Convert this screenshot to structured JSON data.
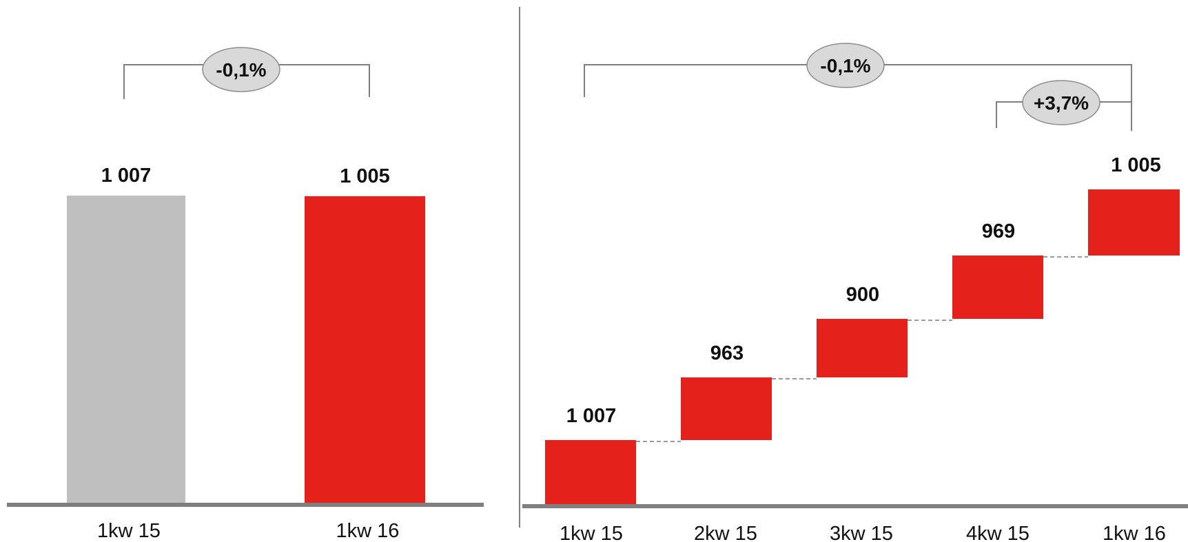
{
  "colors": {
    "highlight": "#e4211b",
    "previous": "#bfbfbf",
    "axis": "#7f7f7f",
    "bracket": "#7f7f7f",
    "badge_fill": "#d9d9d9",
    "badge_stroke": "#8c8c8c",
    "connector": "#8c8c8c"
  },
  "chart_data": [
    {
      "type": "bar",
      "categories": [
        "1kw 15",
        "1kw 16"
      ],
      "values": [
        1007,
        1005
      ],
      "value_labels": [
        "1 007",
        "1 005"
      ],
      "bar_colors": [
        "#bfbfbf",
        "#e4211b"
      ],
      "ylim": [
        0,
        1007
      ],
      "comparisons": [
        {
          "from": "1kw 15",
          "to": "1kw 16",
          "label": "-0,1%"
        }
      ]
    },
    {
      "type": "bar",
      "categories": [
        "1kw 15",
        "2kw 15",
        "3kw 15",
        "4kw 15",
        "1kw 16"
      ],
      "values": [
        1007,
        963,
        900,
        969,
        1005
      ],
      "value_labels": [
        "1 007",
        "963",
        "900",
        "969",
        "1 005"
      ],
      "bar_colors": [
        "#e4211b",
        "#e4211b",
        "#e4211b",
        "#e4211b",
        "#e4211b"
      ],
      "comparisons": [
        {
          "from": "1kw 15",
          "to": "1kw 16",
          "label": "-0,1%"
        },
        {
          "from": "4kw 15",
          "to": "1kw 16",
          "label": "+3,7%"
        }
      ]
    }
  ]
}
